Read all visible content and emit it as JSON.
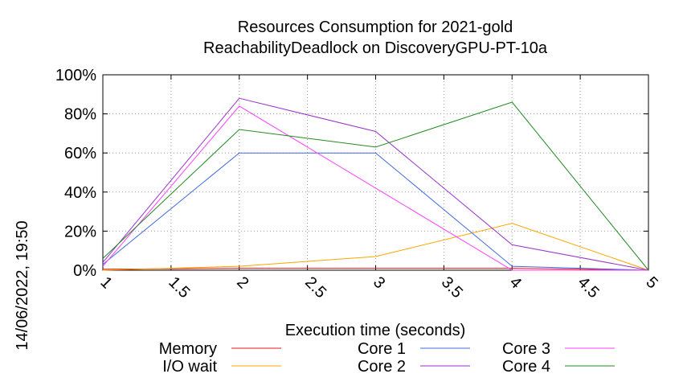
{
  "chart_data": {
    "type": "line",
    "title": [
      "Resources Consumption for 2021-gold",
      "ReachabilityDeadlock on DiscoveryGPU-PT-10a"
    ],
    "xlabel": "Execution time (seconds)",
    "ylabel": "",
    "side_label": "14/06/2022, 19:50",
    "xlim": [
      1,
      5
    ],
    "ylim": [
      0,
      100
    ],
    "x_ticks": [
      1,
      1.5,
      2,
      2.5,
      3,
      3.5,
      4,
      4.5,
      5
    ],
    "x_tick_labels": [
      "1",
      "1.5",
      "2",
      "2.5",
      "3",
      "3.5",
      "4",
      "4.5",
      "5"
    ],
    "y_ticks": [
      0,
      20,
      40,
      60,
      80,
      100
    ],
    "y_tick_labels": [
      "0%",
      "20%",
      "40%",
      "60%",
      "80%",
      "100%"
    ],
    "grid": true,
    "legend_position": "bottom",
    "x": [
      1,
      2,
      3,
      4,
      5
    ],
    "series": [
      {
        "name": "Memory",
        "color": "#e41a1c",
        "values": [
          0.5,
          1,
          1,
          1,
          0
        ]
      },
      {
        "name": "I/O wait",
        "color": "#ffa500",
        "values": [
          0,
          2,
          7,
          24,
          0
        ]
      },
      {
        "name": "Core 1",
        "color": "#4169e1",
        "values": [
          3,
          60,
          60,
          2,
          0
        ]
      },
      {
        "name": "Core 2",
        "color": "#9932cc",
        "values": [
          4,
          88,
          71,
          13,
          0
        ]
      },
      {
        "name": "Core 3",
        "color": "#ff40ff",
        "values": [
          2,
          84,
          42,
          0,
          0
        ]
      },
      {
        "name": "Core 4",
        "color": "#228b22",
        "values": [
          6,
          72,
          63,
          86,
          0
        ]
      }
    ]
  }
}
